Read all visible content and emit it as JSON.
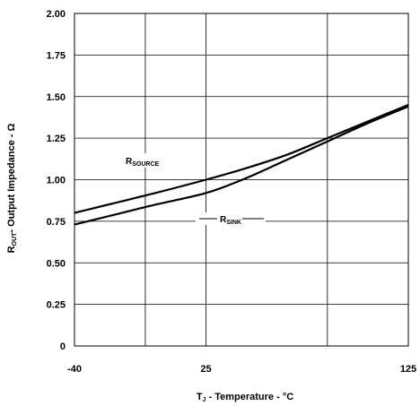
{
  "chart_data": {
    "type": "line",
    "xlabel_main": "T",
    "xlabel_sub": "J",
    "xlabel_rest": " - Temperature - °C",
    "ylabel_main": "R",
    "ylabel_sub": "OUT",
    "ylabel_rest": "- Output Impedance - Ω",
    "xlim": [
      -40,
      125
    ],
    "ylim": [
      0,
      2.0
    ],
    "x_ticks": [
      -40,
      25,
      125
    ],
    "x_tick_labels": [
      "-40",
      "25",
      "125"
    ],
    "y_ticks": [
      0,
      0.25,
      0.5,
      0.75,
      1.0,
      1.25,
      1.5,
      1.75,
      2.0
    ],
    "y_tick_labels": [
      "0",
      "0.25",
      "0.50",
      "0.75",
      "1.00",
      "1.25",
      "1.50",
      "1.75",
      "2.00"
    ],
    "grid": true,
    "series": [
      {
        "label_main": "R",
        "label_sub": "SOURCE",
        "x": [
          -40,
          -20,
          0,
          25,
          45,
          65,
          85,
          105,
          125
        ],
        "y": [
          0.8,
          0.86,
          0.92,
          1.0,
          1.07,
          1.15,
          1.25,
          1.35,
          1.45
        ]
      },
      {
        "label_main": "R",
        "label_sub": "SINK",
        "x": [
          -40,
          -20,
          0,
          25,
          45,
          65,
          85,
          105,
          125
        ],
        "y": [
          0.73,
          0.79,
          0.85,
          0.92,
          1.01,
          1.12,
          1.23,
          1.34,
          1.44
        ]
      }
    ]
  }
}
